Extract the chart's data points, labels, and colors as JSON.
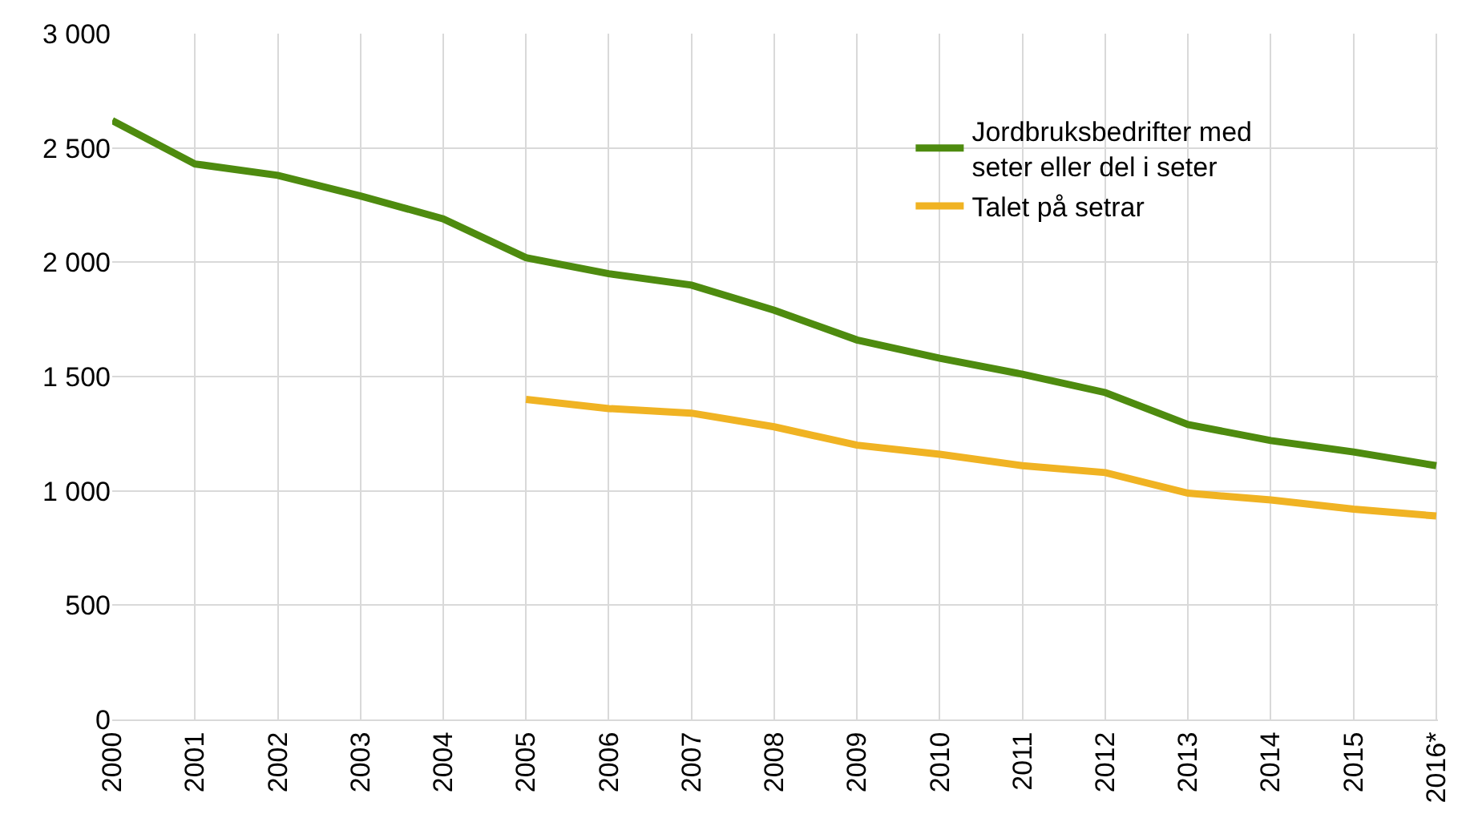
{
  "chart_data": {
    "type": "line",
    "categories": [
      "2000",
      "2001",
      "2002",
      "2003",
      "2004",
      "2005",
      "2006",
      "2007",
      "2008",
      "2009",
      "2010",
      "2011",
      "2012",
      "2013",
      "2014",
      "2015",
      "2016*"
    ],
    "series": [
      {
        "name": "Jordbruksbedrifter med seter eller del i seter",
        "color": "#4e8b0f",
        "values": [
          2620,
          2430,
          2380,
          2290,
          2190,
          2020,
          1950,
          1900,
          1790,
          1660,
          1580,
          1510,
          1430,
          1290,
          1220,
          1170,
          1110
        ]
      },
      {
        "name": "Talet på setrar",
        "color": "#f0b323",
        "values": [
          null,
          null,
          null,
          null,
          null,
          1400,
          1360,
          1340,
          1280,
          1200,
          1160,
          1110,
          1080,
          990,
          960,
          920,
          890
        ]
      }
    ],
    "ylim": [
      0,
      3000
    ],
    "yticks": [
      {
        "value": 0,
        "label": "0"
      },
      {
        "value": 500,
        "label": "500"
      },
      {
        "value": 1000,
        "label": "1 000"
      },
      {
        "value": 1500,
        "label": "1 500"
      },
      {
        "value": 2000,
        "label": "2 000"
      },
      {
        "value": 2500,
        "label": "2 500"
      },
      {
        "value": 3000,
        "label": "3 000"
      }
    ],
    "grid": true,
    "legend": "top right",
    "marker": "none",
    "line_style": "solid"
  }
}
